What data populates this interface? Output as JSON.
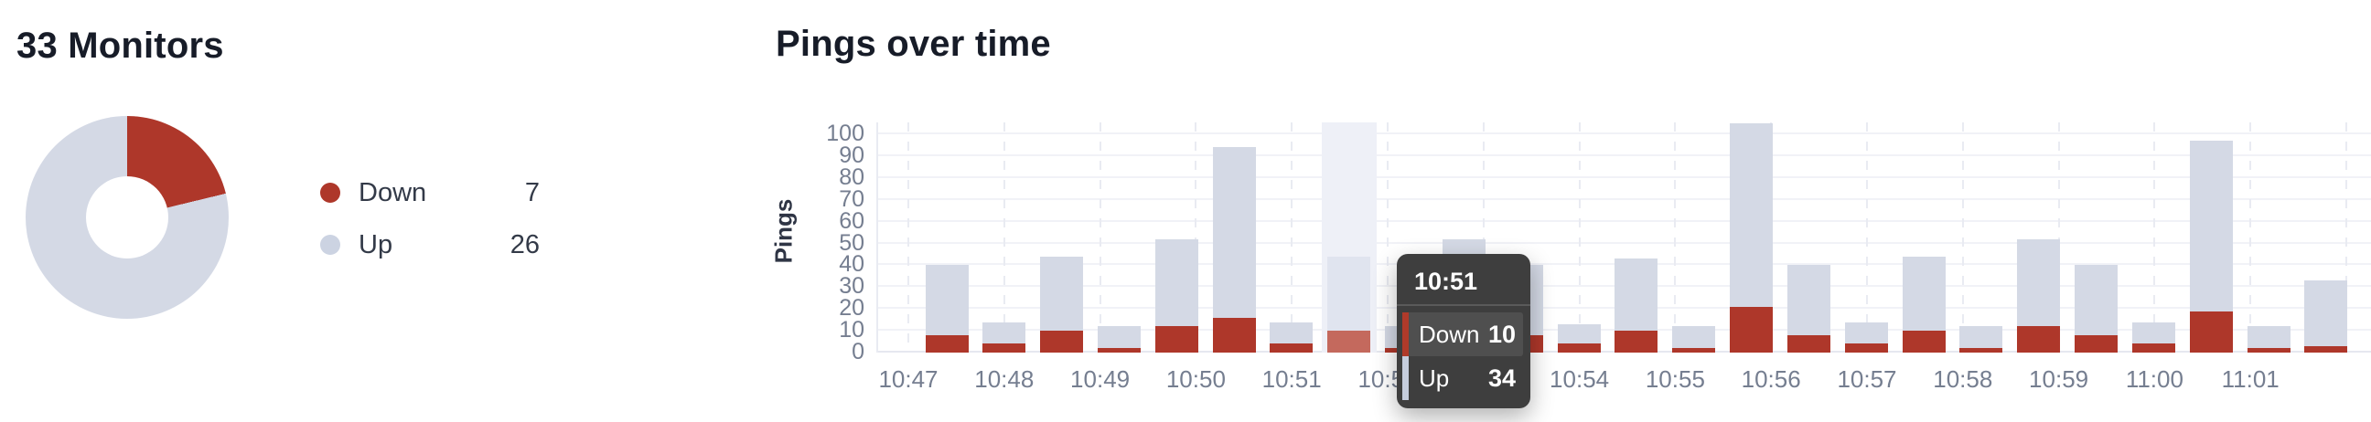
{
  "monitors_panel": {
    "title": "33 Monitors",
    "legend": [
      {
        "label": "Down",
        "value": 7,
        "color": "#ae372a"
      },
      {
        "label": "Up",
        "value": 26,
        "color": "#ccd3e2"
      }
    ]
  },
  "chart_panel": {
    "title": "Pings over time",
    "y_axis_label": "Pings"
  },
  "tooltip": {
    "title": "10:51",
    "rows": [
      {
        "label": "Down",
        "value": 10,
        "marker_color": "#b03a2a",
        "highlighted": true
      },
      {
        "label": "Up",
        "value": 34,
        "marker_color": "#c5cddd",
        "highlighted": false
      }
    ]
  },
  "chart_data": [
    {
      "type": "pie",
      "donut": true,
      "title": "33 Monitors",
      "labels": [
        "Down",
        "Up"
      ],
      "values": [
        7,
        26
      ],
      "colors": [
        "#ae372a",
        "#d4d9e5"
      ],
      "legend_position": "right"
    },
    {
      "type": "bar",
      "stacked": true,
      "title": "Pings over time",
      "xlabel": "",
      "ylabel": "Pings",
      "ylim": [
        0,
        100
      ],
      "grid": true,
      "legend_position": "none",
      "y_ticks": [
        0,
        10,
        20,
        30,
        40,
        50,
        60,
        70,
        80,
        90,
        100
      ],
      "x_tick_labels": [
        "10:47",
        "10:48",
        "10:49",
        "10:50",
        "10:51",
        "10:52",
        "10:53",
        "10:54",
        "10:55",
        "10:56",
        "10:57",
        "10:58",
        "10:59",
        "11:00",
        "11:01"
      ],
      "series": [
        {
          "name": "Down",
          "color": "#ae372a",
          "hover_color": "#c4695d",
          "values": [
            8,
            4,
            10,
            2,
            12,
            16,
            4,
            10,
            2,
            12,
            8,
            4,
            10,
            2,
            21,
            8,
            4,
            10,
            2,
            12,
            8,
            4,
            19,
            2,
            3
          ]
        },
        {
          "name": "Up",
          "color": "#d4d9e5",
          "hover_color": "#e0e4ef",
          "values": [
            32,
            10,
            34,
            10,
            40,
            78,
            10,
            34,
            10,
            40,
            32,
            9,
            33,
            10,
            84,
            32,
            10,
            34,
            10,
            40,
            32,
            10,
            78,
            10,
            30
          ]
        }
      ],
      "hovered_bar_index": 7,
      "hover_tooltip": {
        "time": "10:51",
        "down": 10,
        "up": 34
      }
    }
  ]
}
